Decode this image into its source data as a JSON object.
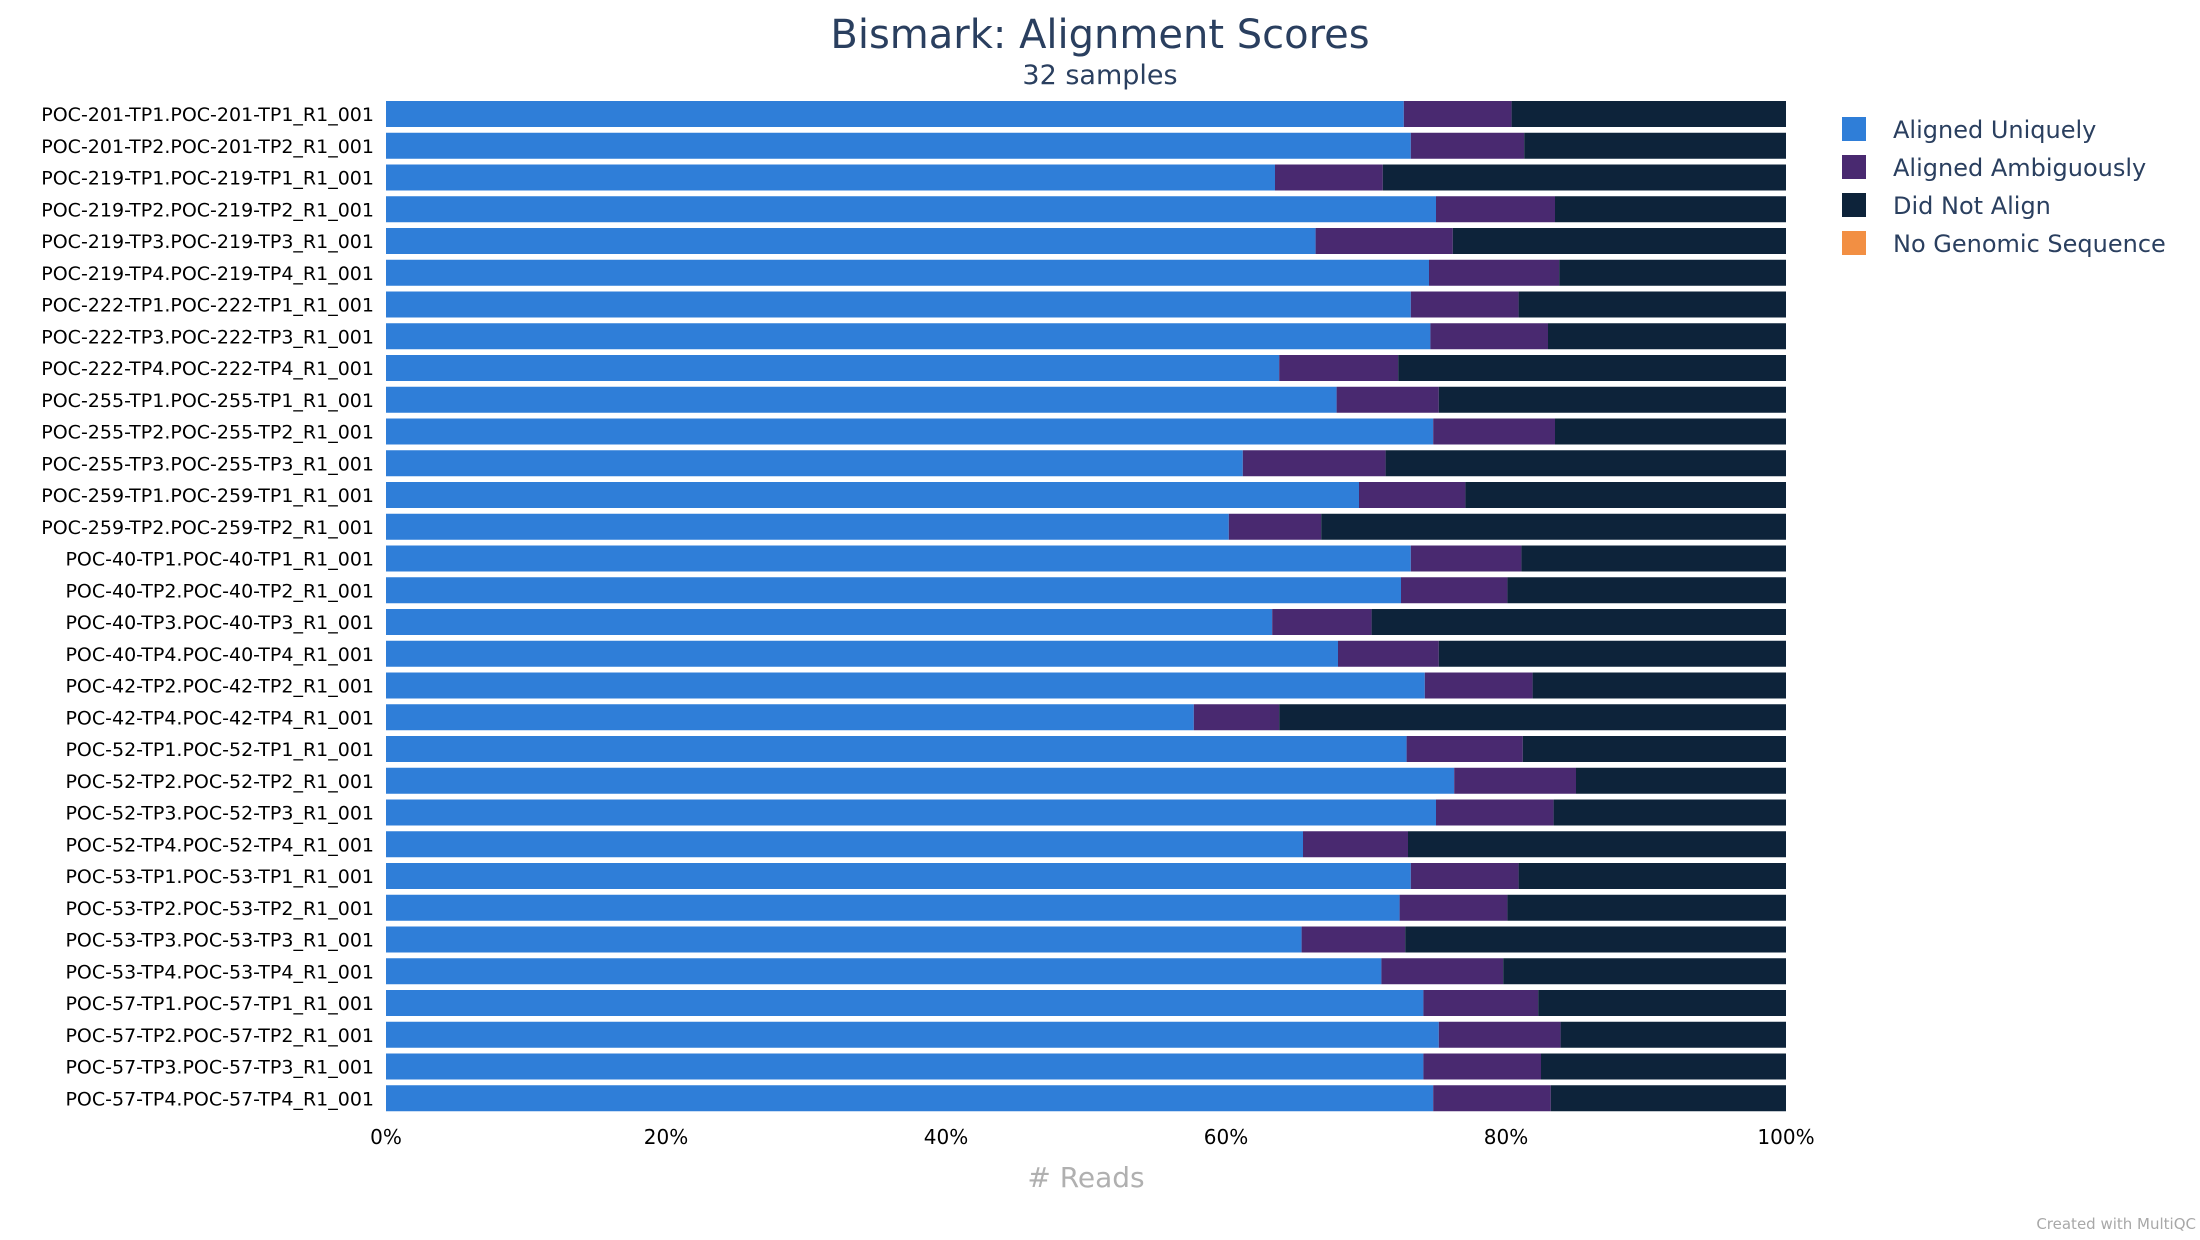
{
  "chart_data": {
    "type": "bar",
    "orientation": "horizontal",
    "stacking": "percent",
    "title": "Bismark: Alignment Scores",
    "subtitle": "32 samples",
    "xlabel": "# Reads",
    "xlim": [
      0,
      100
    ],
    "xticks": [
      "0%",
      "20%",
      "40%",
      "60%",
      "80%",
      "100%"
    ],
    "grid": false,
    "legend_placement": "top-right",
    "credit": "Created with MultiQC",
    "categories": [
      "POC-201-TP1.POC-201-TP1_R1_001",
      "POC-201-TP2.POC-201-TP2_R1_001",
      "POC-219-TP1.POC-219-TP1_R1_001",
      "POC-219-TP2.POC-219-TP2_R1_001",
      "POC-219-TP3.POC-219-TP3_R1_001",
      "POC-219-TP4.POC-219-TP4_R1_001",
      "POC-222-TP1.POC-222-TP1_R1_001",
      "POC-222-TP3.POC-222-TP3_R1_001",
      "POC-222-TP4.POC-222-TP4_R1_001",
      "POC-255-TP1.POC-255-TP1_R1_001",
      "POC-255-TP2.POC-255-TP2_R1_001",
      "POC-255-TP3.POC-255-TP3_R1_001",
      "POC-259-TP1.POC-259-TP1_R1_001",
      "POC-259-TP2.POC-259-TP2_R1_001",
      "POC-40-TP1.POC-40-TP1_R1_001",
      "POC-40-TP2.POC-40-TP2_R1_001",
      "POC-40-TP3.POC-40-TP3_R1_001",
      "POC-40-TP4.POC-40-TP4_R1_001",
      "POC-42-TP2.POC-42-TP2_R1_001",
      "POC-42-TP4.POC-42-TP4_R1_001",
      "POC-52-TP1.POC-52-TP1_R1_001",
      "POC-52-TP2.POC-52-TP2_R1_001",
      "POC-52-TP3.POC-52-TP3_R1_001",
      "POC-52-TP4.POC-52-TP4_R1_001",
      "POC-53-TP1.POC-53-TP1_R1_001",
      "POC-53-TP2.POC-53-TP2_R1_001",
      "POC-53-TP3.POC-53-TP3_R1_001",
      "POC-53-TP4.POC-53-TP4_R1_001",
      "POC-57-TP1.POC-57-TP1_R1_001",
      "POC-57-TP2.POC-57-TP2_R1_001",
      "POC-57-TP3.POC-57-TP3_R1_001",
      "POC-57-TP4.POC-57-TP4_R1_001"
    ],
    "series": [
      {
        "name": "Aligned Uniquely",
        "color": "#2f7ed8",
        "values": [
          72.7,
          73.2,
          63.5,
          75.0,
          66.4,
          74.5,
          73.2,
          74.6,
          63.8,
          67.9,
          74.8,
          61.2,
          69.5,
          60.2,
          73.2,
          72.5,
          63.3,
          68.0,
          74.2,
          57.7,
          72.9,
          76.3,
          75.0,
          65.5,
          73.2,
          72.4,
          65.4,
          71.1,
          74.1,
          75.2,
          74.1,
          74.8
        ]
      },
      {
        "name": "Aligned Ambiguously",
        "color": "#492970",
        "values": [
          7.7,
          8.1,
          7.7,
          8.5,
          9.8,
          9.3,
          7.7,
          8.4,
          8.5,
          7.3,
          8.7,
          10.2,
          7.6,
          6.6,
          7.9,
          7.6,
          7.1,
          7.2,
          7.7,
          6.1,
          8.3,
          8.7,
          8.4,
          7.5,
          7.7,
          7.7,
          7.4,
          8.7,
          8.2,
          8.7,
          8.4,
          8.4
        ]
      },
      {
        "name": "Did Not Align",
        "color": "#0d233a",
        "values": [
          19.6,
          18.7,
          28.8,
          16.5,
          23.8,
          16.2,
          19.1,
          17.0,
          27.7,
          24.8,
          16.5,
          28.6,
          22.9,
          33.2,
          18.9,
          19.9,
          29.6,
          24.8,
          18.1,
          36.2,
          18.8,
          15.0,
          16.6,
          27.0,
          19.1,
          19.9,
          27.2,
          20.2,
          17.7,
          16.1,
          17.5,
          16.8
        ]
      },
      {
        "name": "No Genomic Sequence",
        "color": "#f28f43",
        "values": [
          0,
          0,
          0,
          0,
          0,
          0,
          0,
          0,
          0,
          0,
          0,
          0,
          0,
          0,
          0,
          0,
          0,
          0,
          0,
          0,
          0,
          0,
          0,
          0,
          0,
          0,
          0,
          0,
          0,
          0,
          0,
          0
        ]
      }
    ]
  }
}
